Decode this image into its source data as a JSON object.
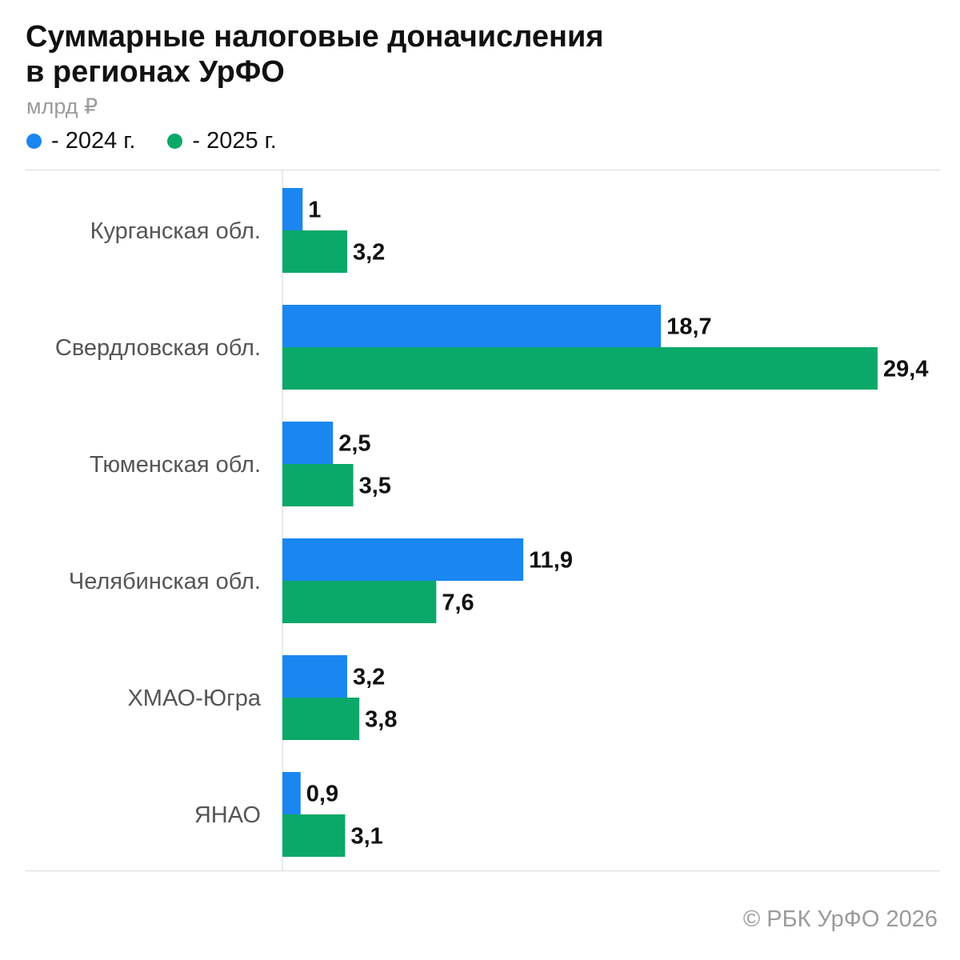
{
  "title_line1": "Суммарные налоговые доначисления",
  "title_line2": "в регионах УрФО",
  "unit": "млрд ₽",
  "legend": [
    {
      "label": "- 2024 г.",
      "color": "#1a86f0"
    },
    {
      "label": "- 2025 г.",
      "color": "#0aa869"
    }
  ],
  "credit": "© РБК УрФО 2026",
  "chart_data": {
    "type": "bar",
    "orientation": "horizontal",
    "title": "Суммарные налоговые доначисления в регионах УрФО",
    "unit": "млрд ₽",
    "categories": [
      "Курганская обл.",
      "Свердловская обл.",
      "Тюменская обл.",
      "Челябинская обл.",
      "ХМАО-Югра",
      "ЯНАО"
    ],
    "series": [
      {
        "name": "2024 г.",
        "color": "#1a86f0",
        "values": [
          1,
          18.7,
          2.5,
          11.9,
          3.2,
          0.9
        ],
        "labels": [
          "1",
          "18,7",
          "2,5",
          "11,9",
          "3,2",
          "0,9"
        ]
      },
      {
        "name": "2025 г.",
        "color": "#0aa869",
        "values": [
          3.2,
          29.4,
          3.5,
          7.6,
          3.8,
          3.1
        ],
        "labels": [
          "3,2",
          "29,4",
          "3,5",
          "7,6",
          "3,8",
          "3,1"
        ]
      }
    ],
    "xlim": [
      0,
      29.4
    ],
    "grid": false,
    "legend_position": "top-left"
  }
}
